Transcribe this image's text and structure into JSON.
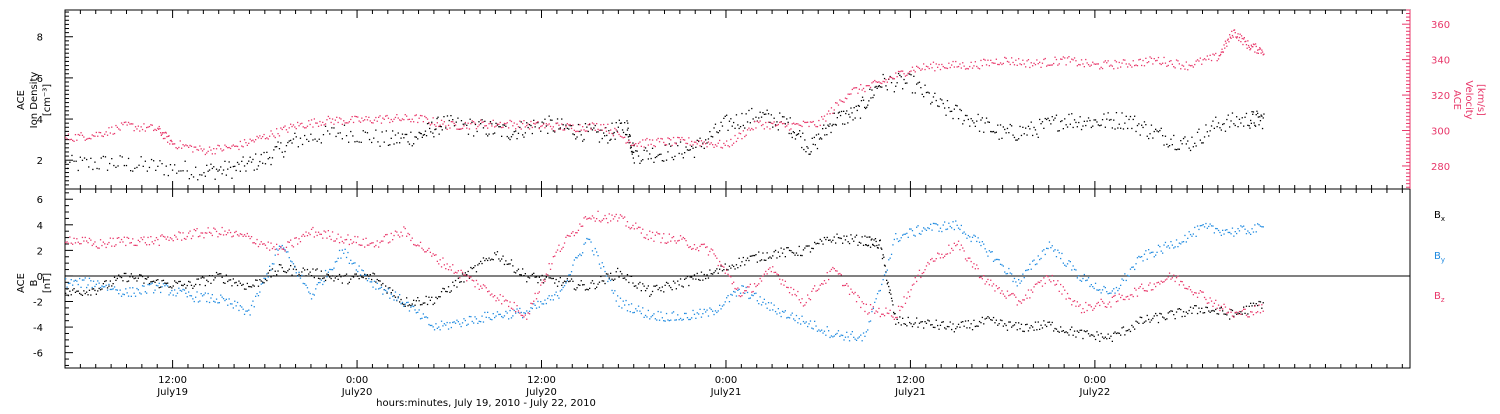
{
  "colors": {
    "black": "#000000",
    "pink": "#e8376a",
    "blue": "#1f8ae0"
  },
  "chart_data": [
    {
      "type": "scatter",
      "panel": "top",
      "ylabel_left": [
        "ACE",
        "Ion Density",
        "[cm⁻³]"
      ],
      "ylabel_right": [
        "ACE",
        "Velocity",
        "[km/s]"
      ],
      "y_left_range": [
        0.6,
        9.3
      ],
      "y_left_ticks": [
        2,
        4,
        6,
        8
      ],
      "y_right_range": [
        267,
        368
      ],
      "y_right_ticks": [
        280,
        300,
        320,
        340,
        360
      ],
      "series": [
        {
          "axis": "left",
          "color": "black",
          "points": [
            [
              0,
              1.8
            ],
            [
              3,
              1.9
            ],
            [
              6,
              1.7
            ],
            [
              9,
              1.5
            ],
            [
              11,
              1.6
            ],
            [
              13,
              2.1
            ],
            [
              15,
              3.0
            ],
            [
              18,
              3.4
            ],
            [
              21,
              3.0
            ],
            [
              23,
              3.2
            ],
            [
              24.5,
              3.8
            ],
            [
              27,
              3.6
            ],
            [
              29,
              3.4
            ],
            [
              31,
              3.8
            ],
            [
              33,
              3.5
            ],
            [
              35,
              3.2
            ],
            [
              36.5,
              3.7
            ],
            [
              37,
              2.3
            ],
            [
              39,
              2.4
            ],
            [
              41,
              2.6
            ],
            [
              43,
              3.8
            ],
            [
              45,
              4.2
            ],
            [
              47,
              3.8
            ],
            [
              48.5,
              2.6
            ],
            [
              50,
              4.0
            ],
            [
              51.5,
              4.3
            ],
            [
              53,
              5.8
            ],
            [
              55,
              5.8
            ],
            [
              57,
              4.6
            ],
            [
              59,
              4.0
            ],
            [
              61,
              3.3
            ],
            [
              63,
              3.5
            ],
            [
              65,
              4.0
            ],
            [
              67,
              3.9
            ],
            [
              69,
              4.0
            ],
            [
              71,
              3.3
            ],
            [
              73,
              2.8
            ],
            [
              75,
              3.8
            ],
            [
              77,
              4.0
            ],
            [
              78,
              4.0
            ]
          ]
        },
        {
          "axis": "right",
          "color": "pink",
          "points": [
            [
              0,
              296
            ],
            [
              2,
              298
            ],
            [
              4,
              303
            ],
            [
              6,
              301
            ],
            [
              7,
              293
            ],
            [
              9,
              289
            ],
            [
              11,
              291
            ],
            [
              13,
              297
            ],
            [
              15,
              303
            ],
            [
              17,
              306
            ],
            [
              19,
              306
            ],
            [
              21,
              307
            ],
            [
              23,
              307
            ],
            [
              25,
              303
            ],
            [
              27,
              304
            ],
            [
              29,
              304
            ],
            [
              31,
              303
            ],
            [
              33,
              302
            ],
            [
              35,
              303
            ],
            [
              37,
              293
            ],
            [
              39,
              294
            ],
            [
              41,
              294
            ],
            [
              43,
              292
            ],
            [
              45,
              304
            ],
            [
              47,
              303
            ],
            [
              49,
              304
            ],
            [
              51,
              322
            ],
            [
              53,
              327
            ],
            [
              55,
              335
            ],
            [
              57,
              337
            ],
            [
              59,
              337
            ],
            [
              61,
              340
            ],
            [
              63,
              338
            ],
            [
              65,
              340
            ],
            [
              67,
              337
            ],
            [
              69,
              338
            ],
            [
              71,
              340
            ],
            [
              73,
              337
            ],
            [
              75,
              342
            ],
            [
              76,
              356
            ],
            [
              77,
              348
            ],
            [
              78,
              345
            ]
          ]
        }
      ]
    },
    {
      "type": "scatter",
      "panel": "bottom",
      "ylabel_left": [
        "ACE",
        "B",
        "[nT]"
      ],
      "y_range": [
        -7.2,
        6.8
      ],
      "y_ticks": [
        -6,
        -4,
        -2,
        0,
        2,
        4,
        6
      ],
      "zero_line": true,
      "legend": [
        "Bx",
        "By",
        "Bz"
      ],
      "series": [
        {
          "name": "Bx",
          "color": "black",
          "points": [
            [
              0,
              -1.3
            ],
            [
              2,
              -1.0
            ],
            [
              4,
              0.0
            ],
            [
              6,
              -0.5
            ],
            [
              8,
              -0.7
            ],
            [
              10,
              0.0
            ],
            [
              12,
              -0.8
            ],
            [
              14,
              0.6
            ],
            [
              16,
              0.3
            ],
            [
              18,
              -0.2
            ],
            [
              20,
              0.0
            ],
            [
              22,
              -2.0
            ],
            [
              24,
              -1.8
            ],
            [
              26,
              0.0
            ],
            [
              28,
              1.8
            ],
            [
              30,
              0.0
            ],
            [
              32,
              -0.4
            ],
            [
              34,
              -0.8
            ],
            [
              36,
              0.3
            ],
            [
              38,
              -1.2
            ],
            [
              40,
              -0.5
            ],
            [
              42,
              0.2
            ],
            [
              44,
              1.2
            ],
            [
              46,
              1.8
            ],
            [
              48,
              2.0
            ],
            [
              50,
              3.0
            ],
            [
              52,
              2.8
            ],
            [
              53,
              2.5
            ],
            [
              54,
              -3.5
            ],
            [
              56,
              -3.7
            ],
            [
              58,
              -4.0
            ],
            [
              60,
              -3.5
            ],
            [
              62,
              -4.0
            ],
            [
              64,
              -3.8
            ],
            [
              66,
              -4.5
            ],
            [
              68,
              -4.8
            ],
            [
              70,
              -3.5
            ],
            [
              72,
              -3.0
            ],
            [
              74,
              -2.5
            ],
            [
              76,
              -3.0
            ],
            [
              78,
              -2.0
            ]
          ]
        },
        {
          "name": "By",
          "color": "blue",
          "points": [
            [
              0,
              -0.5
            ],
            [
              2,
              -0.5
            ],
            [
              4,
              -1.3
            ],
            [
              6,
              -0.8
            ],
            [
              8,
              -1.5
            ],
            [
              10,
              -1.8
            ],
            [
              12,
              -2.8
            ],
            [
              14,
              2.5
            ],
            [
              16,
              -1.5
            ],
            [
              18,
              2.0
            ],
            [
              20,
              -0.5
            ],
            [
              22,
              -2.0
            ],
            [
              24,
              -4.0
            ],
            [
              26,
              -3.5
            ],
            [
              28,
              -3.0
            ],
            [
              30,
              -2.8
            ],
            [
              32,
              -1.5
            ],
            [
              34,
              3.0
            ],
            [
              36,
              -2.0
            ],
            [
              38,
              -3.0
            ],
            [
              40,
              -3.2
            ],
            [
              42,
              -2.8
            ],
            [
              44,
              -1.0
            ],
            [
              46,
              -2.5
            ],
            [
              48,
              -3.5
            ],
            [
              50,
              -4.5
            ],
            [
              52,
              -4.8
            ],
            [
              54,
              3.0
            ],
            [
              56,
              3.8
            ],
            [
              58,
              4.0
            ],
            [
              60,
              2.0
            ],
            [
              62,
              -0.5
            ],
            [
              64,
              2.5
            ],
            [
              66,
              0.0
            ],
            [
              68,
              -1.5
            ],
            [
              70,
              1.5
            ],
            [
              72,
              2.5
            ],
            [
              74,
              3.8
            ],
            [
              76,
              3.5
            ],
            [
              78,
              3.8
            ]
          ]
        },
        {
          "name": "Bz",
          "color": "pink",
          "points": [
            [
              0,
              3.0
            ],
            [
              2,
              2.5
            ],
            [
              4,
              2.8
            ],
            [
              6,
              2.8
            ],
            [
              8,
              3.3
            ],
            [
              10,
              3.5
            ],
            [
              12,
              3.0
            ],
            [
              14,
              2.0
            ],
            [
              16,
              3.5
            ],
            [
              18,
              3.0
            ],
            [
              20,
              2.5
            ],
            [
              22,
              3.5
            ],
            [
              24,
              1.5
            ],
            [
              26,
              0.0
            ],
            [
              28,
              -1.5
            ],
            [
              30,
              -3.0
            ],
            [
              32,
              2.0
            ],
            [
              34,
              4.8
            ],
            [
              36,
              4.5
            ],
            [
              38,
              3.2
            ],
            [
              40,
              2.8
            ],
            [
              42,
              2.0
            ],
            [
              44,
              -1.5
            ],
            [
              46,
              0.5
            ],
            [
              48,
              -2.0
            ],
            [
              50,
              0.5
            ],
            [
              52,
              -2.5
            ],
            [
              54,
              -3.0
            ],
            [
              56,
              1.0
            ],
            [
              58,
              2.5
            ],
            [
              60,
              -0.5
            ],
            [
              62,
              -2.0
            ],
            [
              64,
              0.0
            ],
            [
              66,
              -2.5
            ],
            [
              68,
              -2.0
            ],
            [
              70,
              -1.0
            ],
            [
              72,
              0.0
            ],
            [
              74,
              -1.5
            ],
            [
              76,
              -3.0
            ],
            [
              78,
              -2.5
            ]
          ]
        }
      ]
    }
  ],
  "x_axis": {
    "range_hours": [
      0,
      87.5
    ],
    "ticks": [
      {
        "h": 7,
        "time": "12:00",
        "date": "July19"
      },
      {
        "h": 19,
        "time": "0:00",
        "date": "July20"
      },
      {
        "h": 31,
        "time": "12:00",
        "date": "July20"
      },
      {
        "h": 43,
        "time": "0:00",
        "date": "July21"
      },
      {
        "h": 55,
        "time": "12:00",
        "date": "July21"
      },
      {
        "h": 67,
        "time": "0:00",
        "date": "July22"
      }
    ],
    "xlabel": "hours:minutes, July 19, 2010 - July 22, 2010"
  }
}
